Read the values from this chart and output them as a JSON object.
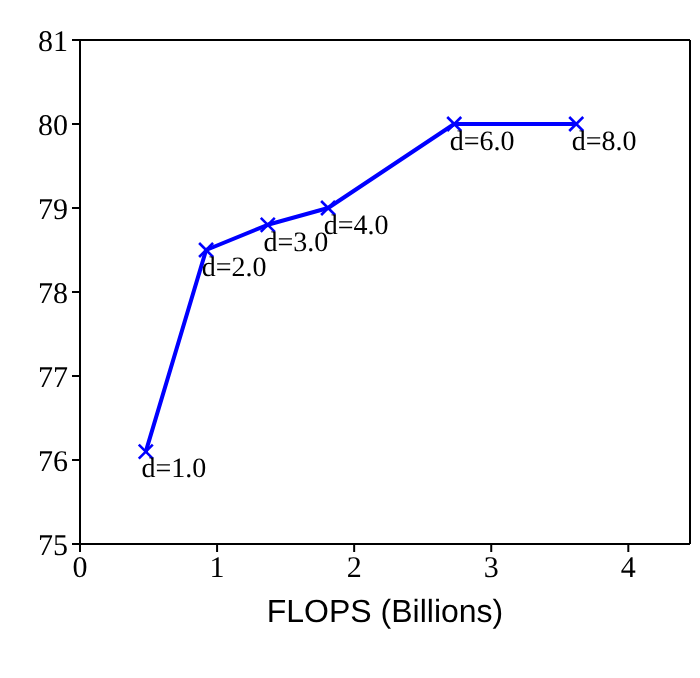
{
  "chart_data": {
    "type": "line",
    "xlabel": "FLOPS (Billions)",
    "x": [
      0.48,
      0.92,
      1.37,
      1.81,
      2.73,
      3.62
    ],
    "series": [
      {
        "color": "#0000ff",
        "values": [
          76.1,
          78.5,
          78.8,
          79.0,
          80.0,
          80.0
        ]
      }
    ],
    "xlim": [
      0,
      4.45
    ],
    "xticks": [
      0,
      1,
      2,
      3,
      4
    ],
    "ylim": [
      75,
      81
    ],
    "yticks": [
      75,
      76,
      77,
      78,
      79,
      80,
      81
    ],
    "grid": false,
    "legend": false,
    "marker": "cross",
    "line_style": "solid",
    "annotations": [
      {
        "text": "d=1.0",
        "x": 0.48,
        "y": 76.1
      },
      {
        "text": "d=2.0",
        "x": 0.92,
        "y": 78.5
      },
      {
        "text": "d=3.0",
        "x": 1.37,
        "y": 78.8
      },
      {
        "text": "d=4.0",
        "x": 1.81,
        "y": 79.0
      },
      {
        "text": "d=6.0",
        "x": 2.73,
        "y": 80.0
      },
      {
        "text": "d=8.0",
        "x": 3.62,
        "y": 80.0
      }
    ]
  }
}
